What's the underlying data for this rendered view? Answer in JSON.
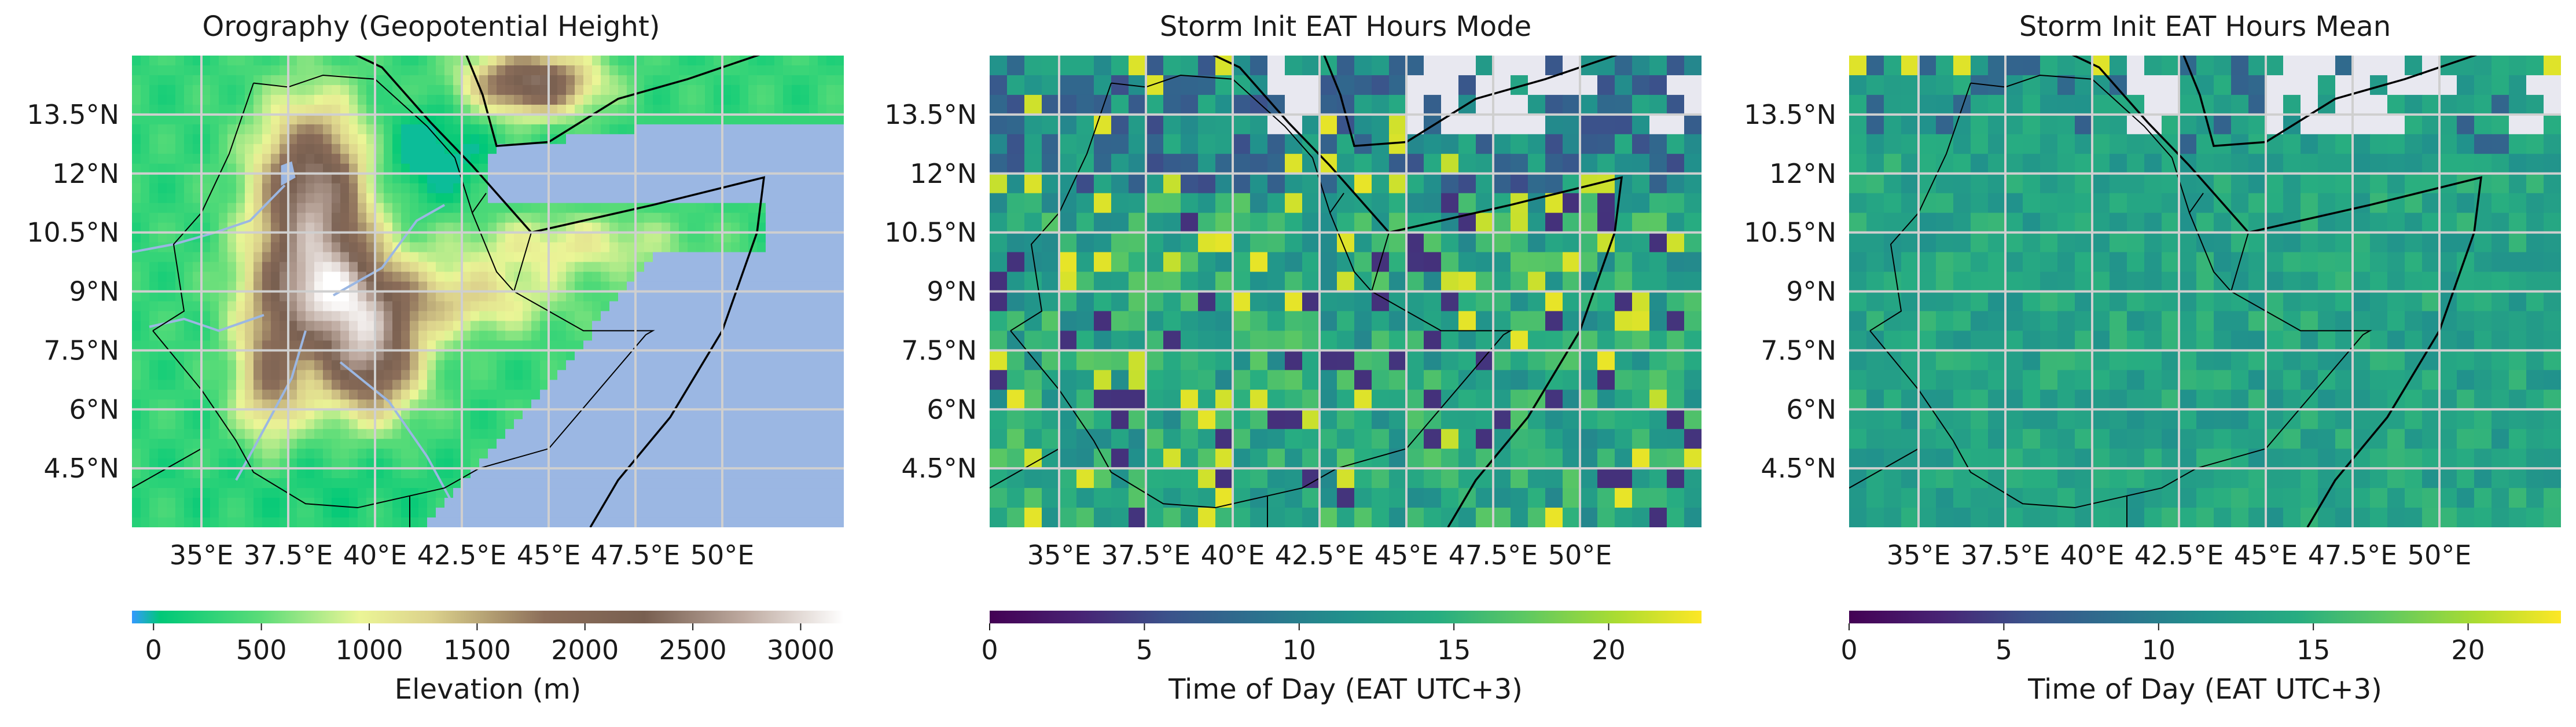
{
  "figure": {
    "panels": [
      {
        "title": "Orography (Geopotential Height)",
        "lat_ticks": [
          "13.5°N",
          "12°N",
          "10.5°N",
          "9°N",
          "7.5°N",
          "6°N",
          "4.5°N"
        ],
        "lon_ticks": [
          "35°E",
          "37.5°E",
          "40°E",
          "42.5°E",
          "45°E",
          "47.5°E",
          "50°E"
        ],
        "colorbar": {
          "label": "Elevation (m)",
          "ticks": [
            "0",
            "500",
            "1000",
            "1500",
            "2000",
            "2500",
            "3000"
          ],
          "tick_values": [
            0,
            500,
            1000,
            1500,
            2000,
            2500,
            3000
          ],
          "range": [
            -100,
            3200
          ],
          "colormap": "terrain"
        }
      },
      {
        "title": "Storm Init EAT Hours Mode",
        "lat_ticks": [
          "13.5°N",
          "12°N",
          "10.5°N",
          "9°N",
          "7.5°N",
          "6°N",
          "4.5°N"
        ],
        "lon_ticks": [
          "35°E",
          "37.5°E",
          "40°E",
          "42.5°E",
          "45°E",
          "47.5°E",
          "50°E"
        ],
        "colorbar": {
          "label": "Time of Day (EAT UTC+3)",
          "ticks": [
            "0",
            "5",
            "10",
            "15",
            "20"
          ],
          "tick_values": [
            0,
            5,
            10,
            15,
            20
          ],
          "range": [
            0,
            23
          ],
          "colormap": "viridis"
        }
      },
      {
        "title": "Storm Init EAT Hours Mean",
        "lat_ticks": [
          "13.5°N",
          "12°N",
          "10.5°N",
          "9°N",
          "7.5°N",
          "6°N",
          "4.5°N"
        ],
        "lon_ticks": [
          "35°E",
          "37.5°E",
          "40°E",
          "42.5°E",
          "45°E",
          "47.5°E",
          "50°E"
        ],
        "colorbar": {
          "label": "Time of Day (EAT UTC+3)",
          "ticks": [
            "0",
            "5",
            "10",
            "15",
            "20"
          ],
          "tick_values": [
            0,
            5,
            10,
            15,
            20
          ],
          "range": [
            0,
            23
          ],
          "colormap": "viridis"
        }
      }
    ],
    "map_extent": {
      "lon": [
        33.0,
        53.5
      ],
      "lat": [
        3.0,
        15.0
      ]
    },
    "colors": {
      "ocean": "#9bb7e3",
      "gridline": "#cfcfcf",
      "no_data": "#e8e8f0",
      "border": "#000000"
    }
  }
}
